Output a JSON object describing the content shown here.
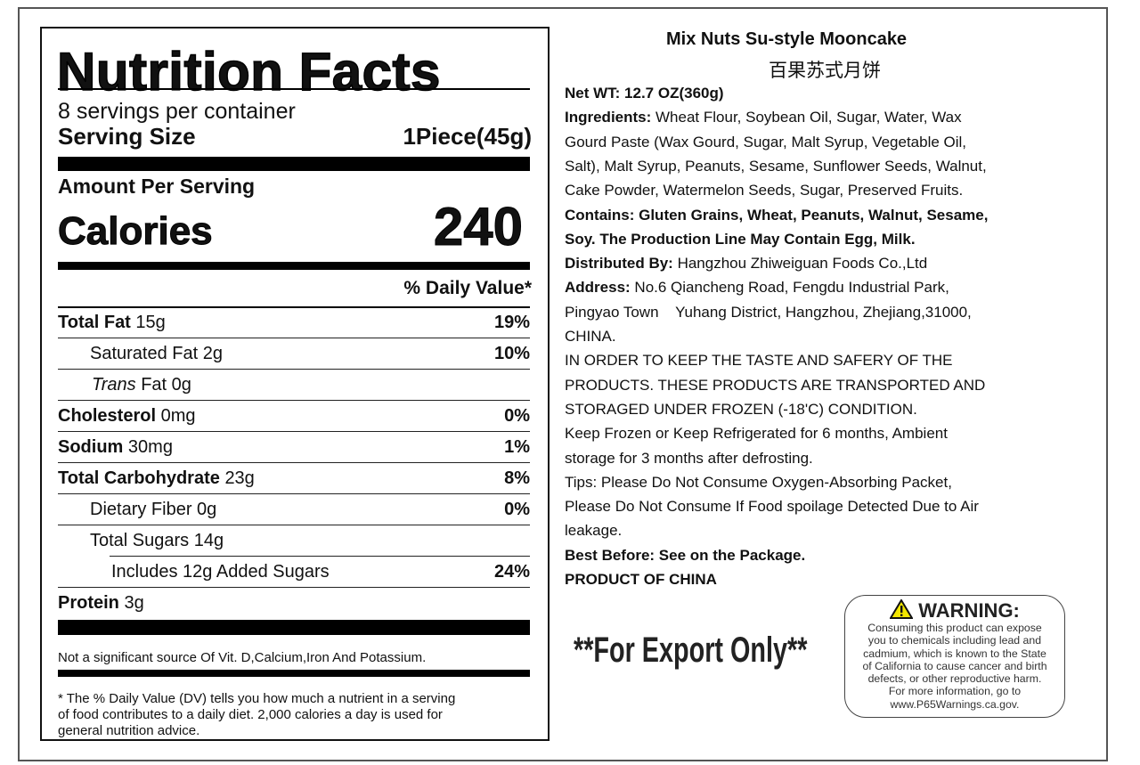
{
  "nutrition": {
    "title": "Nutrition Facts",
    "servings_per_container": "8 servings per container",
    "serving_size_label": "Serving Size",
    "serving_size_value": "1Piece(45g)",
    "amount_per_serving": "Amount Per Serving",
    "calories_label": "Calories",
    "calories_value": "240",
    "daily_value_header": "% Daily Value*",
    "rows": [
      {
        "label": "Total Fat",
        "amount": "15g",
        "pct": "19%"
      },
      {
        "label": "Saturated Fat",
        "amount": "2g",
        "pct": "10%"
      },
      {
        "label": "Trans",
        "amount": "Fat 0g",
        "pct": ""
      },
      {
        "label": "Cholesterol",
        "amount": "0mg",
        "pct": "0%"
      },
      {
        "label": "Sodium",
        "amount": "30mg",
        "pct": "1%"
      },
      {
        "label": "Total Carbohydrate",
        "amount": "23g",
        "pct": "8%"
      },
      {
        "label": "Dietary Fiber",
        "amount": "0g",
        "pct": "0%"
      },
      {
        "label": "Total Sugars",
        "amount": "14g",
        "pct": ""
      },
      {
        "label": "Includes 12g Added Sugars",
        "amount": "",
        "pct": "24%"
      },
      {
        "label": "Protein",
        "amount": "3g",
        "pct": ""
      }
    ],
    "not_significant": "Not a significant source Of Vit. D,Calcium,Iron And Potassium.",
    "footnote": [
      "* The % Daily Value (DV) tells you how much a nutrient in a serving",
      "of food contributes to a daily diet. 2,000 calories a day is used for",
      "general nutrition advice."
    ]
  },
  "product": {
    "name": "Mix Nuts Su-style Mooncake",
    "name_cn": "百果苏式月饼",
    "lines": [
      [
        {
          "b": true,
          "t": "Net WT: 12.7 OZ(360g)"
        }
      ],
      [
        {
          "b": true,
          "t": "Ingredients: "
        },
        {
          "b": false,
          "t": "Wheat Flour, Soybean Oil, Sugar, Water, Wax"
        }
      ],
      [
        {
          "b": false,
          "t": "Gourd Paste (Wax Gourd, Sugar, Malt Syrup, Vegetable Oil,"
        }
      ],
      [
        {
          "b": false,
          "t": "Salt), Malt Syrup, Peanuts, Sesame, Sunflower Seeds, Walnut,"
        }
      ],
      [
        {
          "b": false,
          "t": "Cake Powder, Watermelon Seeds, Sugar, Preserved Fruits."
        }
      ],
      [
        {
          "b": true,
          "t": "Contains: Gluten Grains, Wheat, Peanuts, Walnut, Sesame,"
        }
      ],
      [
        {
          "b": true,
          "t": "Soy. The Production Line May Contain Egg, Milk."
        }
      ],
      [
        {
          "b": true,
          "t": "Distributed By: "
        },
        {
          "b": false,
          "t": "Hangzhou Zhiweiguan Foods Co.,Ltd"
        }
      ],
      [
        {
          "b": true,
          "t": "Address: "
        },
        {
          "b": false,
          "t": "No.6 Qiancheng Road, Fengdu Industrial Park,"
        }
      ],
      [
        {
          "b": false,
          "t": "Pingyao Town    Yuhang District, Hangzhou, Zhejiang,31000,"
        }
      ],
      [
        {
          "b": false,
          "t": "CHINA."
        }
      ],
      [
        {
          "b": false,
          "t": "IN ORDER TO KEEP THE TASTE AND SAFERY OF THE"
        }
      ],
      [
        {
          "b": false,
          "t": "PRODUCTS. THESE PRODUCTS ARE TRANSPORTED AND"
        }
      ],
      [
        {
          "b": false,
          "t": "STORAGED UNDER FROZEN (-18'C) CONDITION."
        }
      ],
      [
        {
          "b": false,
          "t": "Keep Frozen or Keep Refrigerated for 6 months, Ambient"
        }
      ],
      [
        {
          "b": false,
          "t": "storage for 3 months after defrosting."
        }
      ],
      [
        {
          "b": false,
          "t": "Tips: Please Do Not Consume Oxygen-Absorbing Packet,"
        }
      ],
      [
        {
          "b": false,
          "t": "Please Do Not Consume If Food spoilage Detected Due to Air"
        }
      ],
      [
        {
          "b": false,
          "t": "leakage."
        }
      ],
      [
        {
          "b": true,
          "t": "Best Before: See on the Package."
        }
      ],
      [
        {
          "b": true,
          "t": "PRODUCT OF CHINA"
        }
      ]
    ],
    "export_label": "**For Export Only**"
  },
  "warning": {
    "icon": "warning-triangle-icon",
    "title": "WARNING:",
    "lines": [
      "Consuming this product can expose",
      "you to chemicals including lead and",
      "cadmium, which is known to the State",
      "of California to cause cancer and birth",
      "defects, or other reproductive harm.",
      "For more information, go to",
      "www.P65Warnings.ca.gov."
    ],
    "icon_color": "#f2e600"
  }
}
